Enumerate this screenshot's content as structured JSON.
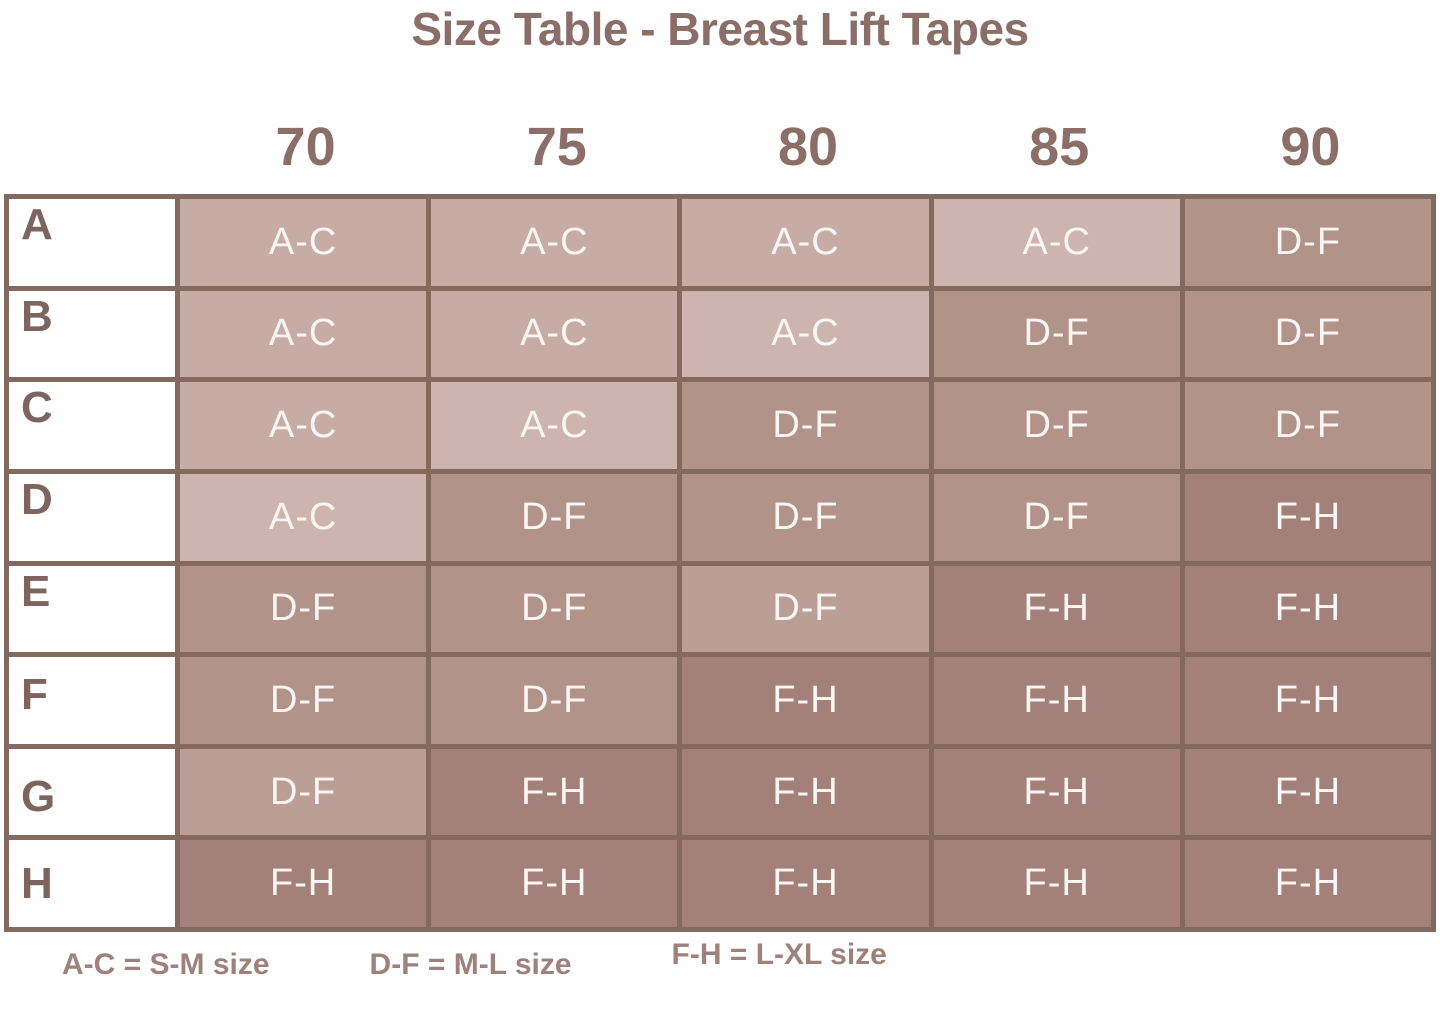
{
  "chart_data": {
    "type": "table",
    "title": "Size Table - Breast Lift Tapes",
    "columns": [
      "70",
      "75",
      "80",
      "85",
      "90"
    ],
    "row_labels": [
      "A",
      "B",
      "C",
      "D",
      "E",
      "F",
      "G",
      "H"
    ],
    "values": [
      [
        "A-C",
        "A-C",
        "A-C",
        "A-C",
        "D-F"
      ],
      [
        "A-C",
        "A-C",
        "A-C",
        "D-F",
        "D-F"
      ],
      [
        "A-C",
        "A-C",
        "D-F",
        "D-F",
        "D-F"
      ],
      [
        "A-C",
        "D-F",
        "D-F",
        "D-F",
        "F-H"
      ],
      [
        "D-F",
        "D-F",
        "D-F",
        "F-H",
        "F-H"
      ],
      [
        "D-F",
        "D-F",
        "F-H",
        "F-H",
        "F-H"
      ],
      [
        "D-F",
        "F-H",
        "F-H",
        "F-H",
        "F-H"
      ],
      [
        "F-H",
        "F-H",
        "F-H",
        "F-H",
        "F-H"
      ]
    ],
    "legend": [
      "A-C = S-M size",
      "D-F = M-L size",
      "F-H = L-XL size"
    ]
  },
  "style": {
    "colors": {
      "ac": "#c6aca5",
      "acLight": "#cdb4ae",
      "df": "#b19389",
      "dfLight": "#bb9e96",
      "fh": "#a3817a",
      "border": "#84695f",
      "heading": "#8a6e67",
      "rowLabel": "#7d645e",
      "cellText": "#fbf6f3",
      "legendText": "#9e817a"
    },
    "tones": [
      [
        "ac",
        "ac",
        "ac",
        "acLight",
        "df"
      ],
      [
        "ac",
        "ac",
        "acLight",
        "df",
        "df"
      ],
      [
        "ac",
        "acLight",
        "df",
        "df",
        "df"
      ],
      [
        "acLight",
        "df",
        "df",
        "df",
        "fh"
      ],
      [
        "df",
        "df",
        "dfLight",
        "fh",
        "fh"
      ],
      [
        "df",
        "df",
        "fh",
        "fh",
        "fh"
      ],
      [
        "dfLight",
        "fh",
        "fh",
        "fh",
        "fh"
      ],
      [
        "fh",
        "fh",
        "fh",
        "fh",
        "fh"
      ]
    ]
  }
}
